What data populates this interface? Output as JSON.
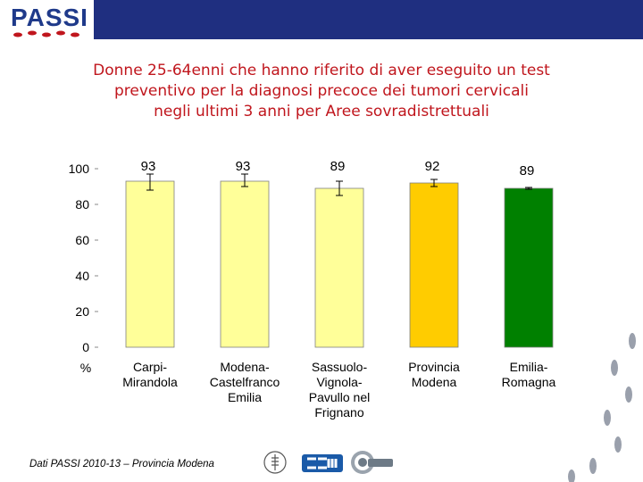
{
  "header": {
    "logo_text": "PASSI"
  },
  "title_lines": [
    "Donne 25-64enni che hanno riferito di aver eseguito un test",
    "preventivo per la diagnosi precoce dei tumori cervicali",
    "negli ultimi 3 anni per Aree sovradistrettuali"
  ],
  "chart_data": {
    "type": "bar",
    "ylabel": "%",
    "ylim": [
      0,
      100
    ],
    "yticks": [
      0,
      20,
      40,
      60,
      80,
      100
    ],
    "categories": [
      [
        "Carpi-",
        "Mirandola"
      ],
      [
        "Modena-",
        "Castelfranco",
        "Emilia"
      ],
      [
        "Sassuolo-",
        "Vignola-",
        "Pavullo nel",
        "Frignano"
      ],
      [
        "Provincia",
        "Modena"
      ],
      [
        "Emilia-",
        "Romagna"
      ]
    ],
    "values": [
      93,
      93,
      89,
      92,
      89
    ],
    "error_low": [
      88,
      90,
      85,
      90,
      88.5
    ],
    "error_high": [
      97,
      97,
      93,
      94,
      89.5
    ],
    "data_labels": [
      "93",
      "93",
      "89",
      "92",
      "89"
    ],
    "bar_colors": [
      "#ffff99",
      "#ffff99",
      "#ffff99",
      "#ffcc00",
      "#008000"
    ]
  },
  "footer": {
    "source": "Dati PASSI 2010-13 – Provincia Modena"
  }
}
